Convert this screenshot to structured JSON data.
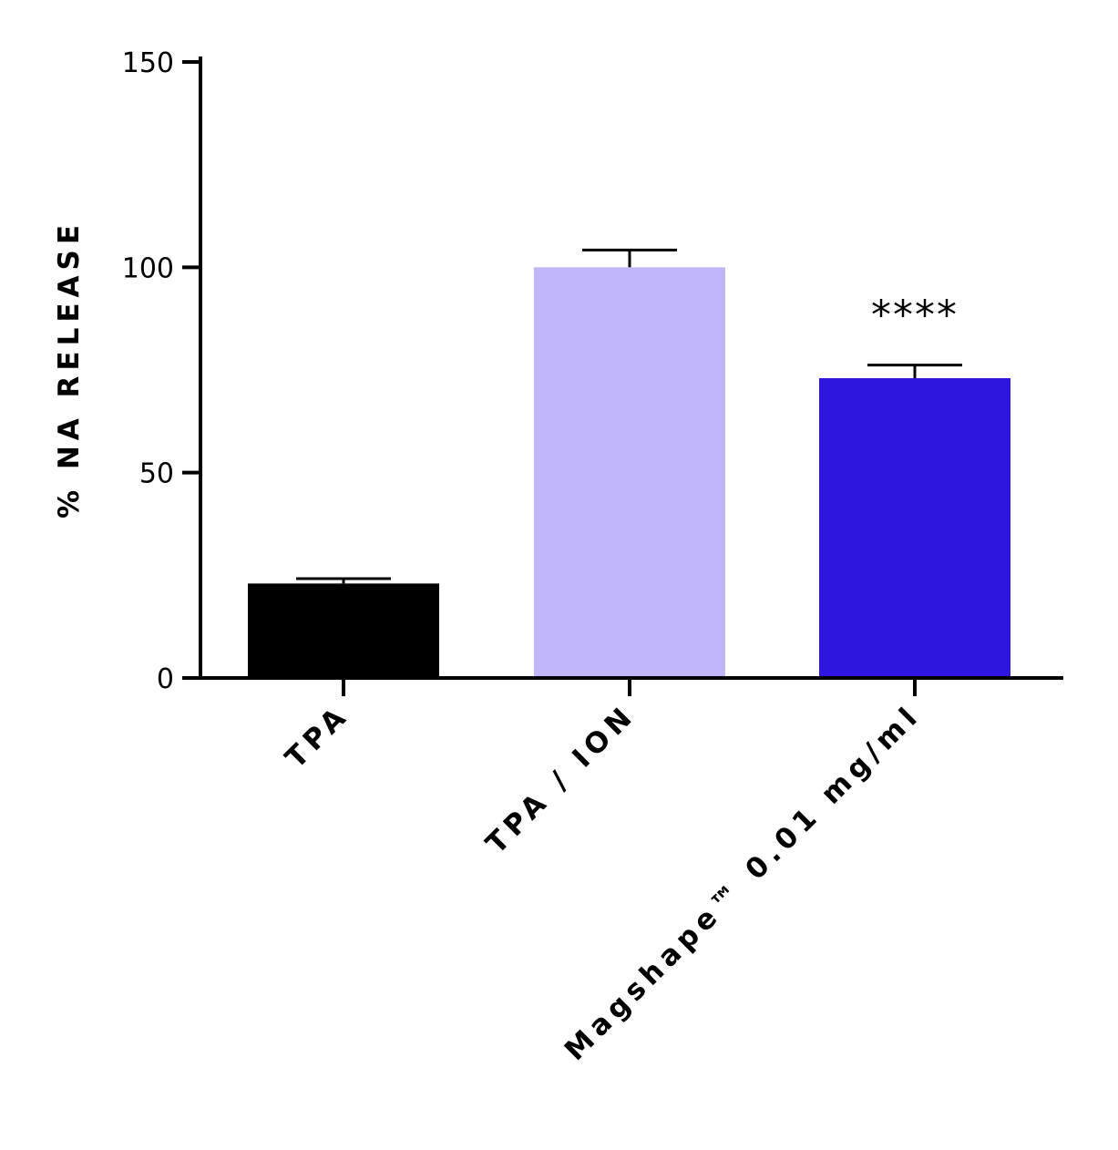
{
  "chart_data": {
    "type": "bar",
    "ylabel": "% NA RELEASE",
    "xlabel": "",
    "ylim": [
      0,
      150
    ],
    "yticks": [
      0,
      50,
      100,
      150
    ],
    "categories": [
      "TPA",
      "TPA / ION",
      "Magshape™ 0.01 mg/ml"
    ],
    "values": [
      23,
      100,
      73
    ],
    "errors": [
      1.2,
      4.2,
      3.2
    ],
    "colors": [
      "#000000",
      "#c0b6f7",
      "#2e16e0"
    ],
    "annotations": [
      "",
      "",
      "****"
    ],
    "grid": false,
    "legend": "none"
  }
}
